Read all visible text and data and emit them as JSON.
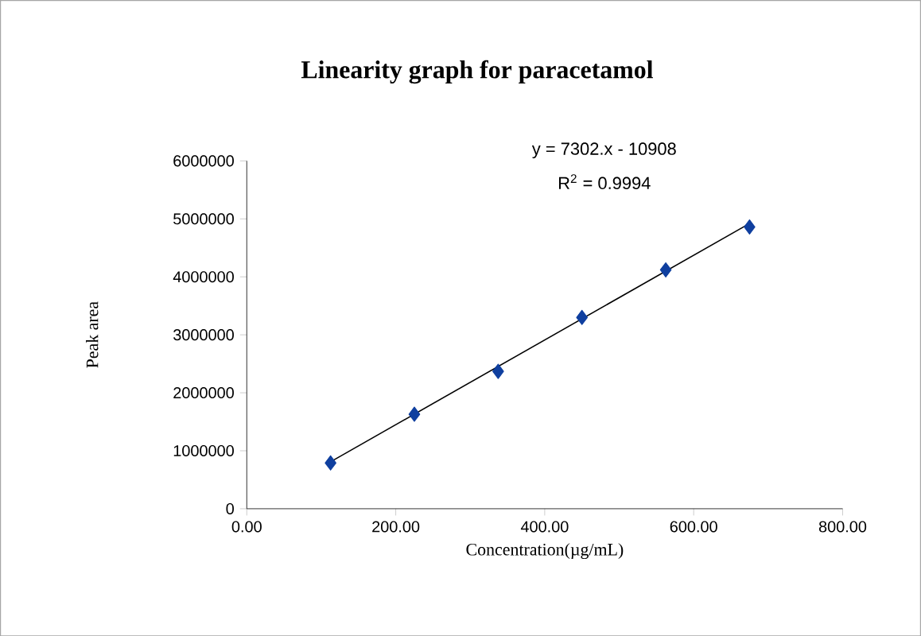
{
  "chart_data": {
    "type": "scatter",
    "title": "Linearity graph for paracetamol",
    "xlabel": "Concentration(µg/mL)",
    "ylabel": "Peak area",
    "annotations": [
      "y = 7302.x - 10908",
      "R$^{2}$ = 0.9994"
    ],
    "marker": "diamond",
    "series": [
      {
        "color": "#0f3f9f",
        "x": [
          112.5,
          225,
          337.5,
          450,
          562.5,
          675
        ],
        "values": [
          790000,
          1630000,
          2370000,
          3300000,
          4120000,
          4860000
        ]
      },
      {
        "type": "line",
        "color": "#000000",
        "marker": "none",
        "x": [
          112.5,
          675
        ],
        "values": [
          810000,
          4920000
        ]
      }
    ],
    "xlim": [
      0,
      800
    ],
    "xticks": [
      {
        "value": 0,
        "label": "0.00"
      },
      {
        "value": 200,
        "label": "200.00"
      },
      {
        "value": 400,
        "label": "400.00"
      },
      {
        "value": 600,
        "label": "600.00"
      },
      {
        "value": 800,
        "label": "800.00"
      }
    ],
    "ylim": [
      0,
      6000000
    ],
    "yticks": [
      0,
      1000000,
      2000000,
      3000000,
      4000000,
      5000000,
      6000000
    ]
  }
}
